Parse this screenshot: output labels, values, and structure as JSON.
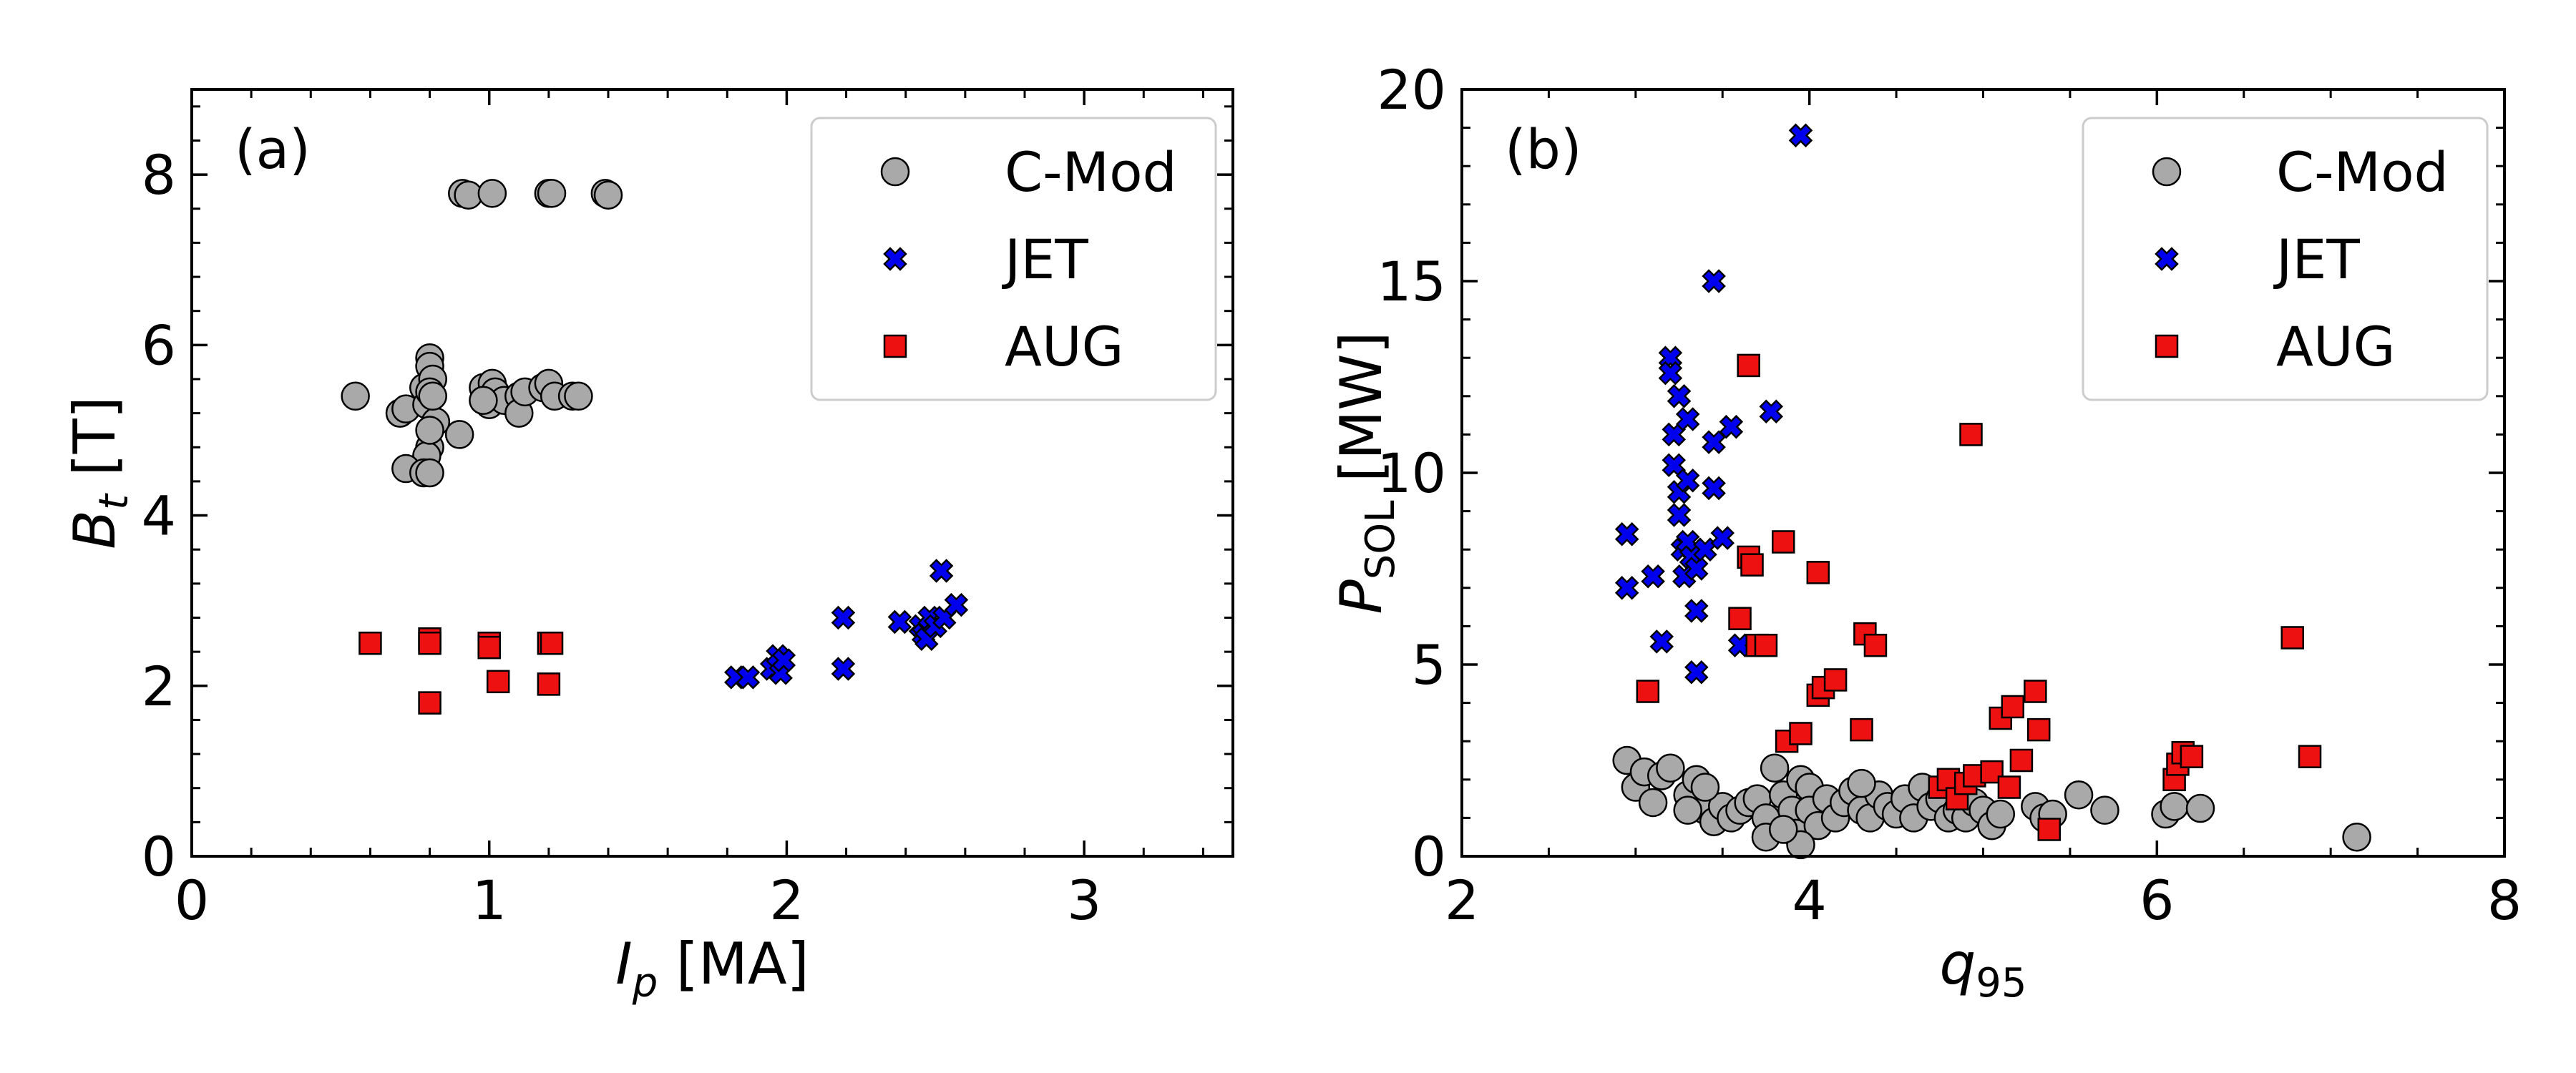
{
  "colors": {
    "cmod_fill": "#a9a9a9",
    "jet_fill": "#0000ee",
    "aug_fill": "#ee1111",
    "edge": "#000000"
  },
  "legend": {
    "entries": [
      "C-Mod",
      "JET",
      "AUG"
    ],
    "location": "top-right"
  },
  "chart_data": [
    {
      "type": "scatter",
      "panel_label": "(a)",
      "xlabel_main": "I",
      "xlabel_sub": "p",
      "xlabel_unit": " [MA]",
      "ylabel_main": "B",
      "ylabel_sub": "t",
      "ylabel_unit": " [T]",
      "xlim": [
        0,
        3.5
      ],
      "ylim": [
        0,
        9
      ],
      "xticks": [
        0,
        1,
        2,
        3
      ],
      "yticks": [
        0,
        2,
        4,
        6,
        8
      ],
      "series": [
        {
          "name": "C-Mod",
          "marker": "circle",
          "points": [
            [
              0.91,
              7.78
            ],
            [
              0.93,
              7.76
            ],
            [
              1.01,
              7.78
            ],
            [
              1.2,
              7.78
            ],
            [
              1.21,
              7.78
            ],
            [
              1.39,
              7.78
            ],
            [
              1.4,
              7.76
            ],
            [
              0.55,
              5.4
            ],
            [
              0.7,
              5.2
            ],
            [
              0.72,
              5.25
            ],
            [
              0.78,
              5.5
            ],
            [
              0.8,
              5.85
            ],
            [
              0.8,
              5.75
            ],
            [
              0.79,
              5.3
            ],
            [
              0.81,
              5.6
            ],
            [
              0.82,
              5.1
            ],
            [
              0.8,
              5.45
            ],
            [
              0.98,
              5.5
            ],
            [
              1.0,
              5.4
            ],
            [
              1.0,
              5.3
            ],
            [
              1.01,
              5.55
            ],
            [
              1.02,
              5.45
            ],
            [
              1.05,
              5.35
            ],
            [
              1.1,
              5.4
            ],
            [
              1.1,
              5.2
            ],
            [
              1.12,
              5.45
            ],
            [
              1.18,
              5.5
            ],
            [
              1.2,
              5.55
            ],
            [
              1.22,
              5.4
            ],
            [
              1.28,
              5.4
            ],
            [
              1.3,
              5.4
            ],
            [
              0.98,
              5.35
            ],
            [
              0.9,
              4.95
            ],
            [
              0.8,
              4.8
            ],
            [
              0.79,
              4.7
            ],
            [
              0.72,
              4.55
            ],
            [
              0.78,
              4.5
            ],
            [
              0.8,
              4.5
            ],
            [
              0.8,
              5.0
            ],
            [
              0.81,
              5.4
            ]
          ]
        },
        {
          "name": "JET",
          "marker": "x",
          "points": [
            [
              1.83,
              2.1
            ],
            [
              1.87,
              2.1
            ],
            [
              1.95,
              2.2
            ],
            [
              1.97,
              2.35
            ],
            [
              1.98,
              2.15
            ],
            [
              1.99,
              2.3
            ],
            [
              2.19,
              2.8
            ],
            [
              2.19,
              2.2
            ],
            [
              2.38,
              2.75
            ],
            [
              2.45,
              2.7
            ],
            [
              2.46,
              2.6
            ],
            [
              2.47,
              2.55
            ],
            [
              2.48,
              2.8
            ],
            [
              2.5,
              2.7
            ],
            [
              2.52,
              3.35
            ],
            [
              2.53,
              2.8
            ],
            [
              2.57,
              2.95
            ]
          ]
        },
        {
          "name": "AUG",
          "marker": "square",
          "points": [
            [
              0.6,
              2.5
            ],
            [
              0.8,
              2.55
            ],
            [
              0.8,
              2.5
            ],
            [
              0.8,
              1.8
            ],
            [
              1.0,
              2.5
            ],
            [
              1.0,
              2.45
            ],
            [
              1.03,
              2.05
            ],
            [
              1.2,
              2.5
            ],
            [
              1.21,
              2.5
            ],
            [
              1.2,
              2.02
            ]
          ]
        }
      ]
    },
    {
      "type": "scatter",
      "panel_label": "(b)",
      "xlabel_main": "q",
      "xlabel_sub": "95",
      "xlabel_unit": "",
      "ylabel_main": "P",
      "ylabel_sub": "SOL",
      "ylabel_unit": " [MW]",
      "xlim": [
        2,
        8
      ],
      "ylim": [
        0,
        20
      ],
      "xticks": [
        2,
        4,
        6,
        8
      ],
      "yticks": [
        0,
        5,
        10,
        15,
        20
      ],
      "series": [
        {
          "name": "C-Mod",
          "marker": "circle",
          "points": [
            [
              2.95,
              2.5
            ],
            [
              3.0,
              1.8
            ],
            [
              3.05,
              2.2
            ],
            [
              3.1,
              1.4
            ],
            [
              3.15,
              2.1
            ],
            [
              3.2,
              2.3
            ],
            [
              3.3,
              1.6
            ],
            [
              3.35,
              2.0
            ],
            [
              3.4,
              1.2
            ],
            [
              3.45,
              0.9
            ],
            [
              3.5,
              1.3
            ],
            [
              3.55,
              1.0
            ],
            [
              3.6,
              1.2
            ],
            [
              3.65,
              1.4
            ],
            [
              3.7,
              1.5
            ],
            [
              3.75,
              1.0
            ],
            [
              3.8,
              2.3
            ],
            [
              3.85,
              1.6
            ],
            [
              3.9,
              1.2
            ],
            [
              3.92,
              0.6
            ],
            [
              3.95,
              2.0
            ],
            [
              4.0,
              1.8
            ],
            [
              4.0,
              1.2
            ],
            [
              4.05,
              0.8
            ],
            [
              4.1,
              1.5
            ],
            [
              4.15,
              1.0
            ],
            [
              4.2,
              1.4
            ],
            [
              4.25,
              1.7
            ],
            [
              4.3,
              1.2
            ],
            [
              4.35,
              1.0
            ],
            [
              4.4,
              1.6
            ],
            [
              4.45,
              1.3
            ],
            [
              4.5,
              1.1
            ],
            [
              4.55,
              1.5
            ],
            [
              4.6,
              1.0
            ],
            [
              4.65,
              1.8
            ],
            [
              4.7,
              1.3
            ],
            [
              4.75,
              1.5
            ],
            [
              4.8,
              1.0
            ],
            [
              4.85,
              1.2
            ],
            [
              4.9,
              1.0
            ],
            [
              4.95,
              1.4
            ],
            [
              5.0,
              1.2
            ],
            [
              5.05,
              0.8
            ],
            [
              5.1,
              1.1
            ],
            [
              5.3,
              1.3
            ],
            [
              5.35,
              1.0
            ],
            [
              5.4,
              1.1
            ],
            [
              5.55,
              1.6
            ],
            [
              5.7,
              1.2
            ],
            [
              6.05,
              1.1
            ],
            [
              6.1,
              1.3
            ],
            [
              6.25,
              1.25
            ],
            [
              7.15,
              0.5
            ],
            [
              3.3,
              1.2
            ],
            [
              3.75,
              0.5
            ],
            [
              3.95,
              0.3
            ],
            [
              4.3,
              1.9
            ],
            [
              3.4,
              1.8
            ],
            [
              3.85,
              0.7
            ]
          ]
        },
        {
          "name": "JET",
          "marker": "x",
          "points": [
            [
              3.95,
              18.8
            ],
            [
              3.45,
              15.0
            ],
            [
              2.95,
              8.4
            ],
            [
              2.95,
              7.0
            ],
            [
              3.1,
              7.3
            ],
            [
              3.15,
              5.6
            ],
            [
              3.2,
              13.0
            ],
            [
              3.2,
              12.6
            ],
            [
              3.22,
              11.0
            ],
            [
              3.22,
              10.2
            ],
            [
              3.25,
              12.0
            ],
            [
              3.25,
              9.5
            ],
            [
              3.25,
              8.9
            ],
            [
              3.27,
              8.0
            ],
            [
              3.28,
              7.3
            ],
            [
              3.3,
              11.4
            ],
            [
              3.3,
              9.8
            ],
            [
              3.3,
              8.2
            ],
            [
              3.32,
              7.8
            ],
            [
              3.35,
              7.5
            ],
            [
              3.35,
              6.4
            ],
            [
              3.35,
              4.8
            ],
            [
              3.4,
              8.0
            ],
            [
              3.45,
              9.6
            ],
            [
              3.45,
              10.8
            ],
            [
              3.5,
              8.3
            ],
            [
              3.55,
              11.2
            ],
            [
              3.6,
              5.5
            ],
            [
              3.78,
              11.6
            ]
          ]
        },
        {
          "name": "AUG",
          "marker": "square",
          "points": [
            [
              3.07,
              4.3
            ],
            [
              3.6,
              6.2
            ],
            [
              3.65,
              12.8
            ],
            [
              3.65,
              7.8
            ],
            [
              3.67,
              7.6
            ],
            [
              3.7,
              5.5
            ],
            [
              3.75,
              5.5
            ],
            [
              3.85,
              8.2
            ],
            [
              3.87,
              3.0
            ],
            [
              3.95,
              3.2
            ],
            [
              4.05,
              7.4
            ],
            [
              4.05,
              4.2
            ],
            [
              4.08,
              4.4
            ],
            [
              4.15,
              4.6
            ],
            [
              4.3,
              3.3
            ],
            [
              4.32,
              5.8
            ],
            [
              4.38,
              5.5
            ],
            [
              4.75,
              1.8
            ],
            [
              4.8,
              2.0
            ],
            [
              4.85,
              1.5
            ],
            [
              4.9,
              1.9
            ],
            [
              4.93,
              11.0
            ],
            [
              4.95,
              2.1
            ],
            [
              5.05,
              2.2
            ],
            [
              5.1,
              3.6
            ],
            [
              5.15,
              1.8
            ],
            [
              5.17,
              3.9
            ],
            [
              5.22,
              2.5
            ],
            [
              5.3,
              4.3
            ],
            [
              5.32,
              3.3
            ],
            [
              5.38,
              0.7
            ],
            [
              6.1,
              2.0
            ],
            [
              6.12,
              2.4
            ],
            [
              6.15,
              2.7
            ],
            [
              6.2,
              2.6
            ],
            [
              6.78,
              5.7
            ],
            [
              6.88,
              2.6
            ]
          ]
        }
      ]
    }
  ]
}
